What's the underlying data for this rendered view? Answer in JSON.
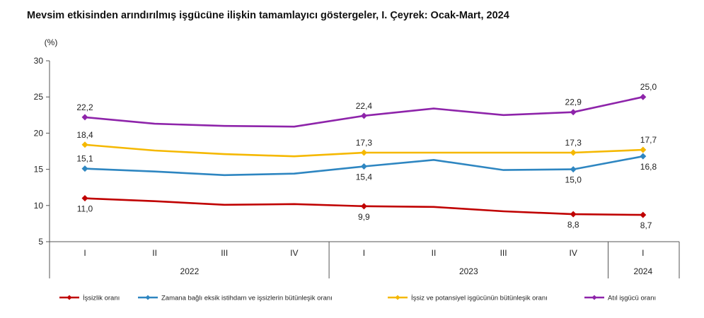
{
  "chart_data": {
    "type": "line",
    "title": "Mevsim etkisinden arındırılmış işgücüne ilişkin tamamlayıcı göstergeler, I. Çeyrek: Ocak-Mart, 2024",
    "ylabel": "(%)",
    "xlabel": "",
    "ylim": [
      5,
      30
    ],
    "yticks": [
      "5",
      "10",
      "15",
      "20",
      "25",
      "30"
    ],
    "categories": [
      "I",
      "II",
      "III",
      "IV",
      "I",
      "II",
      "III",
      "IV",
      "I"
    ],
    "groups": [
      {
        "label": "2022",
        "span": [
          0,
          3
        ]
      },
      {
        "label": "2023",
        "span": [
          4,
          7
        ]
      },
      {
        "label": "2024",
        "span": [
          8,
          8
        ]
      }
    ],
    "grid": false,
    "legend_position": "bottom",
    "series": [
      {
        "name": "İşsizlik oranı",
        "color": "#c00000",
        "values": [
          11.0,
          10.6,
          10.1,
          10.2,
          9.9,
          9.8,
          9.2,
          8.8,
          8.7
        ],
        "labels": [
          "11,0",
          "",
          "",
          "",
          "9,9",
          "",
          "",
          "8,8",
          "8,7"
        ],
        "label_pos": "below"
      },
      {
        "name": "Zamana bağlı eksik istihdam ve işsizlerin bütünleşik oranı",
        "color": "#2e86c1",
        "values": [
          15.1,
          14.7,
          14.2,
          14.4,
          15.4,
          16.3,
          14.9,
          15.0,
          16.8
        ],
        "labels": [
          "15,1",
          "",
          "",
          "",
          "15,4",
          "",
          "",
          "15,0",
          "16,8"
        ],
        "label_pos": "mixed"
      },
      {
        "name": "İşsiz ve potansiyel işgücünün bütünleşik oranı",
        "color": "#f5b800",
        "values": [
          18.4,
          17.6,
          17.1,
          16.8,
          17.3,
          17.3,
          17.3,
          17.3,
          17.7
        ],
        "labels": [
          "18,4",
          "",
          "",
          "",
          "17,3",
          "",
          "",
          "17,3",
          "17,7"
        ],
        "label_pos": "above"
      },
      {
        "name": "Atıl işgücü oranı",
        "color": "#8e24aa",
        "values": [
          22.2,
          21.3,
          21.0,
          20.9,
          22.4,
          23.4,
          22.5,
          22.9,
          25.0
        ],
        "labels": [
          "22,2",
          "",
          "",
          "",
          "22,4",
          "",
          "",
          "22,9",
          "25,0"
        ],
        "label_pos": "above"
      }
    ]
  }
}
